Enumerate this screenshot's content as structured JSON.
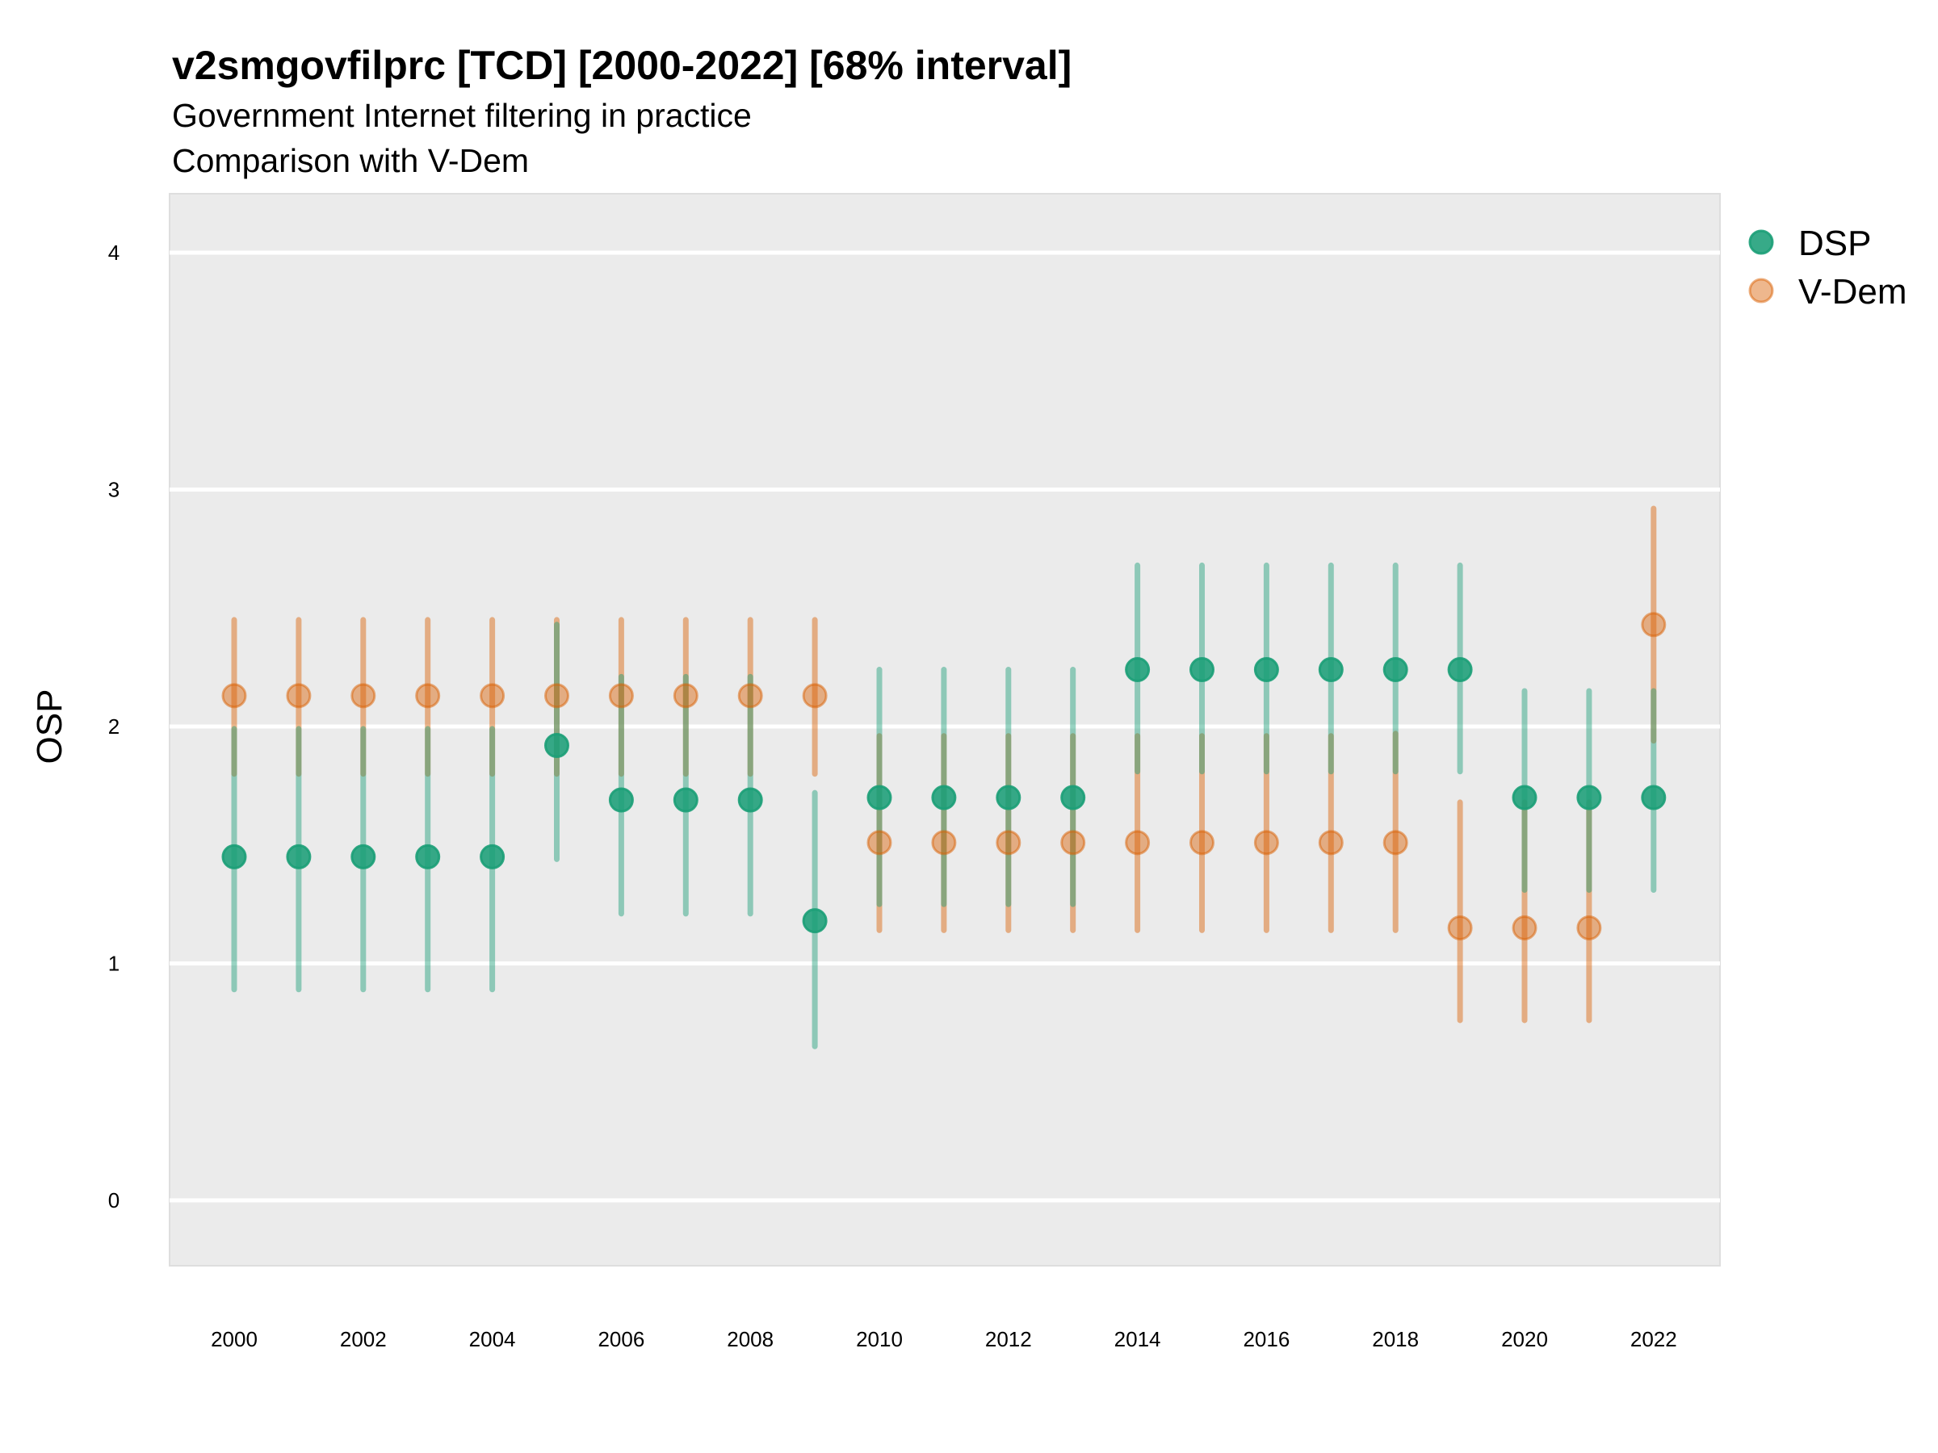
{
  "chart_data": {
    "type": "scatter",
    "title": "v2smgovfilprc [TCD] [2000-2022] [68% interval]",
    "subtitle": "Government Internet filtering in practice",
    "caption": "Comparison with V-Dem",
    "xlabel": "",
    "ylabel": "OSP",
    "xlim": [
      1999,
      2023
    ],
    "ylim": [
      -0.25,
      4.25
    ],
    "grid": true,
    "legend_position": "right",
    "x_ticks": [
      "2000",
      "2002",
      "2004",
      "2006",
      "2008",
      "2010",
      "2012",
      "2014",
      "2016",
      "2018",
      "2020",
      "2022"
    ],
    "y_ticks": [
      "0",
      "1",
      "2",
      "3",
      "4"
    ],
    "x": [
      2000,
      2001,
      2002,
      2003,
      2004,
      2005,
      2006,
      2007,
      2008,
      2009,
      2010,
      2011,
      2012,
      2013,
      2014,
      2015,
      2016,
      2017,
      2018,
      2019,
      2020,
      2021,
      2022
    ],
    "series": [
      {
        "name": "DSP",
        "color": "#1b9e77",
        "values": [
          1.45,
          1.45,
          1.45,
          1.45,
          1.45,
          1.92,
          1.69,
          1.69,
          1.69,
          1.18,
          1.7,
          1.7,
          1.7,
          1.7,
          2.24,
          2.24,
          2.24,
          2.24,
          2.24,
          2.24,
          1.7,
          1.7,
          1.7
        ],
        "lower": [
          0.89,
          0.89,
          0.89,
          0.89,
          0.89,
          1.44,
          1.21,
          1.21,
          1.21,
          0.65,
          1.25,
          1.25,
          1.25,
          1.25,
          1.81,
          1.81,
          1.81,
          1.81,
          1.81,
          1.81,
          1.31,
          1.31,
          1.31
        ],
        "upper": [
          1.99,
          1.99,
          1.99,
          1.99,
          1.99,
          2.43,
          2.21,
          2.21,
          2.21,
          1.72,
          2.24,
          2.24,
          2.24,
          2.24,
          2.68,
          2.68,
          2.68,
          2.68,
          2.68,
          2.68,
          2.15,
          2.15,
          2.15
        ]
      },
      {
        "name": "V-Dem",
        "color": "#d95f02",
        "values": [
          2.13,
          2.13,
          2.13,
          2.13,
          2.13,
          2.13,
          2.13,
          2.13,
          2.13,
          2.13,
          1.51,
          1.51,
          1.51,
          1.51,
          1.51,
          1.51,
          1.51,
          1.51,
          1.51,
          1.15,
          1.15,
          1.15,
          2.43
        ],
        "lower": [
          1.8,
          1.8,
          1.8,
          1.8,
          1.8,
          1.8,
          1.8,
          1.8,
          1.8,
          1.8,
          1.14,
          1.14,
          1.14,
          1.14,
          1.14,
          1.14,
          1.14,
          1.14,
          1.14,
          0.76,
          0.76,
          0.76,
          1.94
        ],
        "upper": [
          2.45,
          2.45,
          2.45,
          2.45,
          2.45,
          2.45,
          2.45,
          2.45,
          2.45,
          2.45,
          1.96,
          1.96,
          1.96,
          1.96,
          1.96,
          1.96,
          1.96,
          1.96,
          1.97,
          1.68,
          1.68,
          1.68,
          2.92
        ]
      }
    ]
  }
}
